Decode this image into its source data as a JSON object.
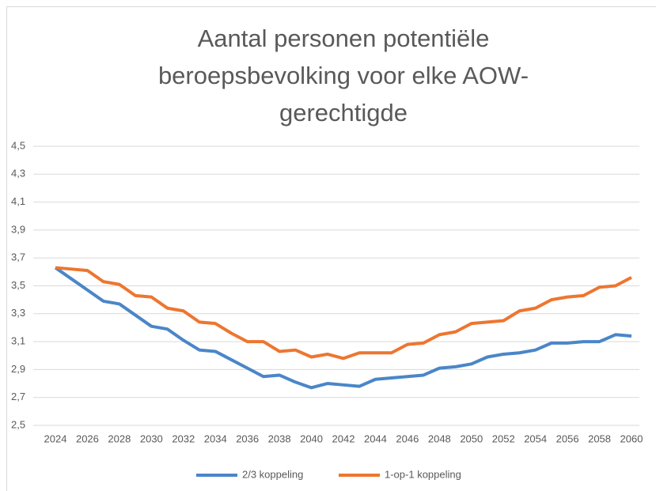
{
  "chart_data": {
    "type": "line",
    "title": [
      "Aantal personen potentiële",
      "beroepsbevolking voor elke AOW-",
      "gerechtigde"
    ],
    "x": [
      2024,
      2025,
      2026,
      2027,
      2028,
      2029,
      2030,
      2031,
      2032,
      2033,
      2034,
      2035,
      2036,
      2037,
      2038,
      2039,
      2040,
      2041,
      2042,
      2043,
      2044,
      2045,
      2046,
      2047,
      2048,
      2049,
      2050,
      2051,
      2052,
      2053,
      2054,
      2055,
      2056,
      2057,
      2058,
      2059,
      2060
    ],
    "xlim": [
      2024,
      2060
    ],
    "xticks": [
      2024,
      2026,
      2028,
      2030,
      2032,
      2034,
      2036,
      2038,
      2040,
      2042,
      2044,
      2046,
      2048,
      2050,
      2052,
      2054,
      2056,
      2058,
      2060
    ],
    "ylim": [
      2.5,
      4.5
    ],
    "yticks": [
      {
        "value": 2.5,
        "label": "2,5"
      },
      {
        "value": 2.7,
        "label": "2,7"
      },
      {
        "value": 2.9,
        "label": "2,9"
      },
      {
        "value": 3.1,
        "label": "3,1"
      },
      {
        "value": 3.3,
        "label": "3,3"
      },
      {
        "value": 3.5,
        "label": "3,5"
      },
      {
        "value": 3.7,
        "label": "3,7"
      },
      {
        "value": 3.9,
        "label": "3,9"
      },
      {
        "value": 4.1,
        "label": "4,1"
      },
      {
        "value": 4.3,
        "label": "4,3"
      },
      {
        "value": 4.5,
        "label": "4,5"
      }
    ],
    "grid": true,
    "legend": "bottom",
    "series": [
      {
        "name": "2/3 koppeling",
        "color": "#4a86c8",
        "values": [
          3.63,
          3.55,
          3.47,
          3.39,
          3.37,
          3.29,
          3.21,
          3.19,
          3.11,
          3.04,
          3.03,
          2.97,
          2.91,
          2.85,
          2.86,
          2.81,
          2.77,
          2.8,
          2.79,
          2.78,
          2.83,
          2.84,
          2.85,
          2.86,
          2.91,
          2.92,
          2.94,
          2.99,
          3.01,
          3.02,
          3.04,
          3.09,
          3.09,
          3.1,
          3.1,
          3.15,
          3.14
        ]
      },
      {
        "name": "1-op-1 koppeling",
        "color": "#ed7630",
        "values": [
          3.63,
          3.62,
          3.61,
          3.53,
          3.51,
          3.43,
          3.42,
          3.34,
          3.32,
          3.24,
          3.23,
          3.16,
          3.1,
          3.1,
          3.03,
          3.04,
          2.99,
          3.01,
          2.98,
          3.02,
          3.02,
          3.02,
          3.08,
          3.09,
          3.15,
          3.17,
          3.23,
          3.24,
          3.25,
          3.32,
          3.34,
          3.4,
          3.42,
          3.43,
          3.49,
          3.5,
          3.56
        ]
      }
    ]
  }
}
